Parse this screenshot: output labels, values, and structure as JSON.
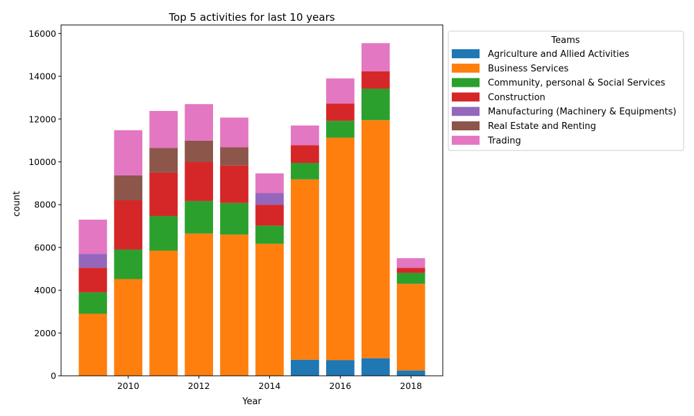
{
  "chart_data": {
    "type": "bar",
    "stacked": true,
    "title": "Top 5 activities for last 10 years",
    "xlabel": "Year",
    "ylabel": "count",
    "x": [
      2009,
      2010,
      2011,
      2012,
      2013,
      2014,
      2015,
      2016,
      2017,
      2018
    ],
    "xticks": [
      2010,
      2012,
      2014,
      2016,
      2018
    ],
    "xlim": [
      2008.1,
      2018.9
    ],
    "ylim": [
      0,
      16400
    ],
    "yticks": [
      0,
      2000,
      4000,
      6000,
      8000,
      10000,
      12000,
      14000,
      16000
    ],
    "grid": false,
    "legend": {
      "title": "Teams",
      "placement": "outside upper right"
    },
    "series": [
      {
        "name": "Agriculture and Allied Activities",
        "color": "#1f77b4",
        "values": [
          0,
          0,
          0,
          0,
          0,
          0,
          750,
          730,
          820,
          250
        ]
      },
      {
        "name": "Business Services",
        "color": "#ff7f0e",
        "values": [
          2900,
          4520,
          5850,
          6650,
          6600,
          6170,
          8430,
          10400,
          11130,
          4050
        ]
      },
      {
        "name": "Community, personal & Social Services",
        "color": "#2ca02c",
        "values": [
          1000,
          1380,
          1620,
          1520,
          1480,
          850,
          770,
          790,
          1470,
          510
        ]
      },
      {
        "name": "Construction",
        "color": "#d62728",
        "values": [
          1150,
          2300,
          2030,
          1830,
          1750,
          980,
          830,
          810,
          810,
          230
        ]
      },
      {
        "name": "Manufacturing (Machinery & Equipments)",
        "color": "#9467bd",
        "values": [
          650,
          0,
          0,
          0,
          0,
          540,
          0,
          0,
          0,
          0
        ]
      },
      {
        "name": "Real Estate and Renting",
        "color": "#8c564b",
        "values": [
          0,
          1170,
          1150,
          990,
          850,
          0,
          0,
          0,
          0,
          0
        ]
      },
      {
        "name": "Trading",
        "color": "#e377c2",
        "values": [
          1600,
          2110,
          1730,
          1710,
          1390,
          920,
          920,
          1170,
          1320,
          460
        ]
      }
    ]
  }
}
